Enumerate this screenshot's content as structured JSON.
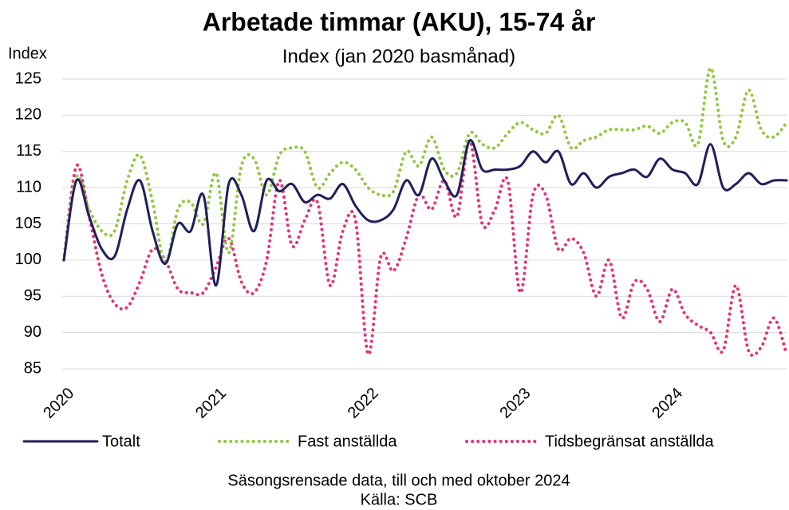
{
  "chart_data": {
    "type": "line",
    "title": "Arbetade timmar (AKU), 15-74 år",
    "subtitle": "Index (jan 2020 basmånad)",
    "y_label": "Index",
    "notes": [
      "Säsongsrensade data, till och med oktober 2024",
      "Källa: SCB"
    ],
    "categories": [
      "2020",
      null,
      null,
      null,
      null,
      null,
      null,
      null,
      null,
      null,
      null,
      null,
      "2021",
      null,
      null,
      null,
      null,
      null,
      null,
      null,
      null,
      null,
      null,
      null,
      "2022",
      null,
      null,
      null,
      null,
      null,
      null,
      null,
      null,
      null,
      null,
      null,
      "2023",
      null,
      null,
      null,
      null,
      null,
      null,
      null,
      null,
      null,
      null,
      null,
      "2024",
      null,
      null,
      null,
      null,
      null,
      null,
      null,
      null,
      null
    ],
    "series": [
      {
        "name": "Totalt",
        "color": "#1f1f5c",
        "style": "solid",
        "values": [
          100,
          111,
          106,
          101.5,
          100.5,
          107,
          111,
          104,
          99.5,
          105,
          104,
          109,
          96.5,
          110.5,
          109,
          104,
          111,
          109.5,
          110.5,
          108,
          109,
          108.5,
          110.5,
          107.5,
          105.5,
          105.5,
          107,
          111,
          109,
          114,
          111,
          109,
          116.5,
          112.5,
          112.5,
          112.5,
          113,
          115,
          113.5,
          115,
          110.5,
          112,
          110,
          111.5,
          112,
          112.5,
          111.5,
          114,
          112.5,
          112,
          110.5,
          116,
          110,
          110.5,
          112,
          110.5,
          111,
          111
        ]
      },
      {
        "name": "Fast anställda",
        "color": "#92c83e",
        "style": "dotted",
        "values": [
          100,
          111.5,
          107,
          104,
          104,
          111,
          114.5,
          108,
          99.5,
          107,
          108,
          105,
          112,
          101,
          113,
          114,
          109,
          114.5,
          115.5,
          115,
          110,
          112,
          113.5,
          112.5,
          110,
          109,
          109.5,
          115,
          113,
          117,
          112.5,
          112,
          117.5,
          116,
          115.5,
          117.5,
          119,
          118,
          117.5,
          120,
          115.5,
          116.5,
          117,
          118,
          118,
          118,
          118.5,
          117.5,
          119,
          119,
          116,
          126.5,
          116.5,
          117,
          123.5,
          118,
          117,
          119
        ]
      },
      {
        "name": "Tidsbegränsat anställda",
        "color": "#e5337a",
        "style": "dotted",
        "values": [
          100,
          113,
          106,
          98,
          94,
          93.5,
          97,
          101.5,
          100,
          96,
          95.5,
          95.5,
          99,
          103,
          97,
          95.5,
          100,
          111,
          102,
          105.5,
          108,
          96.5,
          104,
          105.5,
          87,
          100.5,
          98.5,
          103,
          109,
          107,
          111,
          106,
          116.5,
          105,
          107,
          111,
          95.5,
          109,
          109,
          101.5,
          103,
          101,
          95,
          100,
          92,
          97,
          96,
          91.5,
          96,
          92.5,
          91,
          90,
          87.5,
          96.5,
          87.5,
          88,
          92,
          87
        ]
      }
    ],
    "ylim": [
      85,
      125
    ],
    "yticks": [
      85,
      90,
      95,
      100,
      105,
      110,
      115,
      120,
      125
    ],
    "grid": true,
    "legend": "bottom"
  }
}
